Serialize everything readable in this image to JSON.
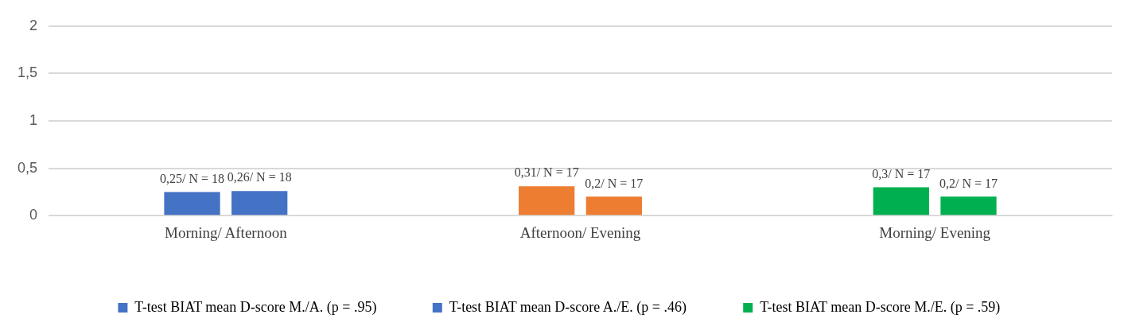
{
  "chart_data": {
    "type": "bar",
    "categories": [
      "Morning/ Afternoon",
      "Afternoon/ Evening",
      "Morning/ Evening"
    ],
    "series": [
      {
        "name": "T-test BIAT mean D-score M./A. (p = .95)",
        "color": "#4472c4",
        "values": [
          0.25,
          null,
          null
        ],
        "value_labels": [
          "0,25/ N = 18",
          null,
          null
        ]
      },
      {
        "name": "T-test BIAT mean D-score A./E. (p = .46)",
        "color": "#4472c4",
        "values": [
          0.26,
          null,
          null
        ],
        "value_labels": [
          "0,26/ N = 18",
          null,
          null
        ]
      },
      {
        "color": "#ed7d31",
        "values": [
          null,
          0.31,
          null
        ],
        "value_labels": [
          null,
          "0,31/ N = 17",
          null
        ]
      },
      {
        "color": "#ed7d31",
        "values": [
          null,
          0.2,
          null
        ],
        "value_labels": [
          null,
          "0,2/ N = 17",
          null
        ]
      },
      {
        "name": "T-test BIAT mean D-score M./E. (p = .59)",
        "color": "#00b050",
        "values": [
          null,
          null,
          0.3
        ],
        "value_labels": [
          null,
          null,
          "0,3/ N = 17"
        ]
      },
      {
        "color": "#00b050",
        "values": [
          null,
          null,
          0.2
        ],
        "value_labels": [
          null,
          null,
          "0,2/ N = 17"
        ]
      }
    ],
    "ylim": [
      0,
      2
    ],
    "yticks": [
      0,
      {
        "value": 0.5,
        "label": "0,5"
      },
      1,
      {
        "value": 1.5,
        "label": "1,5"
      },
      2
    ],
    "grid": "y",
    "legend": "bottom"
  }
}
